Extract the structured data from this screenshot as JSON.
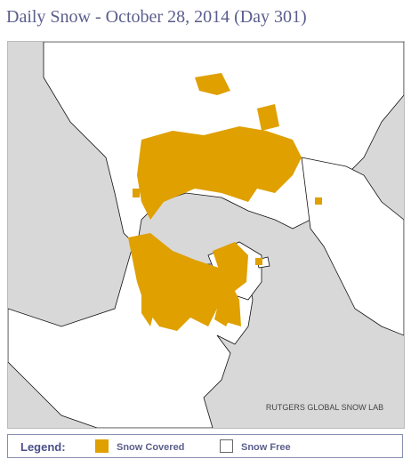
{
  "header": {
    "title": "Daily Snow - October 28, 2014 (Day 301)"
  },
  "map": {
    "credit": "RUTGERS GLOBAL SNOW LAB"
  },
  "legend": {
    "title": "Legend:",
    "items": [
      {
        "label": "Snow Covered"
      },
      {
        "label": "Snow Free"
      }
    ]
  }
}
